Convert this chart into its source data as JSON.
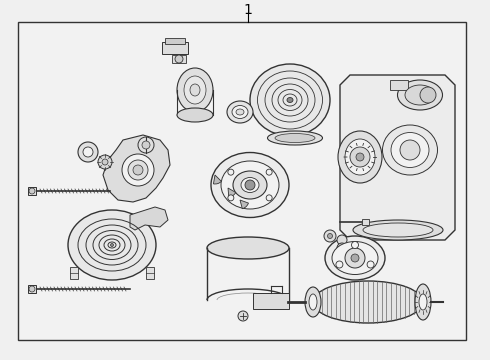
{
  "title": "1",
  "bg_color": "#f0f0f0",
  "border_color": "#333333",
  "line_color": "#333333",
  "fig_width": 4.9,
  "fig_height": 3.6,
  "dpi": 100
}
